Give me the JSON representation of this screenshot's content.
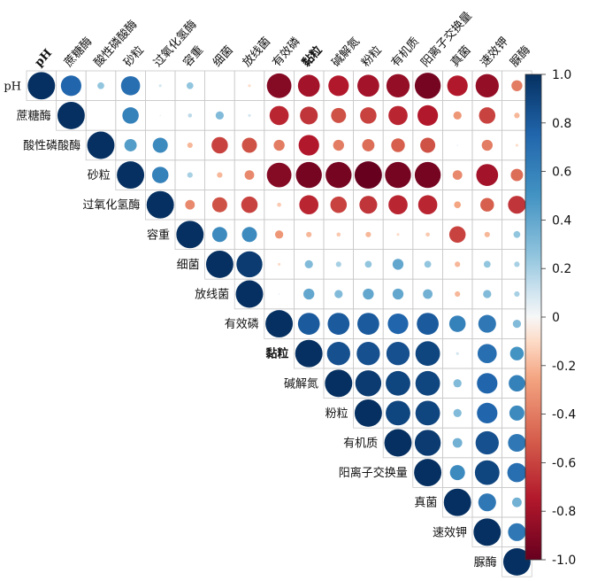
{
  "chart_data": {
    "type": "heatmap",
    "subtype": "correlogram-upper-triangle-circles",
    "variables": [
      "pH",
      "蔗糖酶",
      "酸性磷酸酶",
      "砂粒",
      "过氧化氢酶",
      "容重",
      "细菌",
      "放线菌",
      "有效磷",
      "黏粒",
      "碱解氮",
      "粉粒",
      "有机质",
      "阳离子交换量",
      "真菌",
      "速效钾",
      "脲酶"
    ],
    "matrix": [
      [
        1.0,
        0.75,
        0.25,
        0.7,
        0.1,
        0.25,
        0.0,
        -0.1,
        -0.9,
        -0.8,
        -0.75,
        -0.8,
        -0.85,
        -0.95,
        -0.75,
        -0.85,
        -0.4
      ],
      [
        null,
        1.0,
        0.0,
        0.6,
        0.05,
        0.15,
        0.3,
        0.1,
        -0.7,
        -0.65,
        -0.55,
        -0.6,
        -0.7,
        -0.75,
        -0.3,
        -0.6,
        -0.2
      ],
      [
        null,
        null,
        1.0,
        0.45,
        0.55,
        -0.2,
        -0.6,
        -0.55,
        -0.4,
        -0.75,
        -0.4,
        -0.45,
        -0.5,
        -0.55,
        0.05,
        -0.4,
        -0.1
      ],
      [
        null,
        null,
        null,
        1.0,
        0.6,
        0.2,
        -0.2,
        -0.35,
        -0.9,
        -0.95,
        -0.95,
        -1.0,
        -0.95,
        -0.95,
        -0.35,
        -0.8,
        -0.45
      ],
      [
        null,
        null,
        null,
        null,
        1.0,
        -0.35,
        -0.55,
        -0.6,
        -0.15,
        -0.7,
        -0.6,
        -0.65,
        -0.7,
        -0.7,
        -0.25,
        -0.5,
        -0.65
      ],
      [
        null,
        null,
        null,
        null,
        null,
        1.0,
        0.55,
        0.55,
        -0.3,
        -0.2,
        -0.15,
        -0.2,
        -0.1,
        -0.15,
        -0.6,
        -0.2,
        0.25
      ],
      [
        null,
        null,
        null,
        null,
        null,
        null,
        1.0,
        0.95,
        -0.1,
        0.3,
        0.2,
        0.25,
        0.4,
        0.25,
        -0.2,
        0.25,
        0.2
      ],
      [
        null,
        null,
        null,
        null,
        null,
        null,
        null,
        1.0,
        0.05,
        0.4,
        0.3,
        0.4,
        0.4,
        0.35,
        -0.2,
        0.3,
        0.2
      ],
      [
        null,
        null,
        null,
        null,
        null,
        null,
        null,
        null,
        1.0,
        0.8,
        0.8,
        0.8,
        0.75,
        0.8,
        0.6,
        0.65,
        0.3
      ],
      [
        null,
        null,
        null,
        null,
        null,
        null,
        null,
        null,
        null,
        1.0,
        0.85,
        0.85,
        0.85,
        0.9,
        0.1,
        0.7,
        0.5
      ],
      [
        null,
        null,
        null,
        null,
        null,
        null,
        null,
        null,
        null,
        null,
        1.0,
        0.95,
        0.9,
        0.9,
        0.3,
        0.75,
        0.6
      ],
      [
        null,
        null,
        null,
        null,
        null,
        null,
        null,
        null,
        null,
        null,
        null,
        1.0,
        0.9,
        0.9,
        0.3,
        0.75,
        0.55
      ],
      [
        null,
        null,
        null,
        null,
        null,
        null,
        null,
        null,
        null,
        null,
        null,
        null,
        1.0,
        0.95,
        0.35,
        0.85,
        0.65
      ],
      [
        null,
        null,
        null,
        null,
        null,
        null,
        null,
        null,
        null,
        null,
        null,
        null,
        null,
        1.0,
        0.55,
        0.9,
        0.7
      ],
      [
        null,
        null,
        null,
        null,
        null,
        null,
        null,
        null,
        null,
        null,
        null,
        null,
        null,
        null,
        1.0,
        0.65,
        0.35
      ],
      [
        null,
        null,
        null,
        null,
        null,
        null,
        null,
        null,
        null,
        null,
        null,
        null,
        null,
        null,
        null,
        1.0,
        0.65
      ],
      [
        null,
        null,
        null,
        null,
        null,
        null,
        null,
        null,
        null,
        null,
        null,
        null,
        null,
        null,
        null,
        null,
        1.0
      ]
    ],
    "colorbar": {
      "range": [
        -1.0,
        1.0
      ],
      "ticks": [
        "1.0",
        "0.8",
        "0.6",
        "0.4",
        "0.2",
        "0",
        "-0.2",
        "-0.4",
        "-0.6",
        "-0.8",
        "-1.0"
      ],
      "colors": {
        "negative": "#67001f",
        "zero": "#f7f7f7",
        "positive": "#053061"
      }
    },
    "grid": true
  }
}
